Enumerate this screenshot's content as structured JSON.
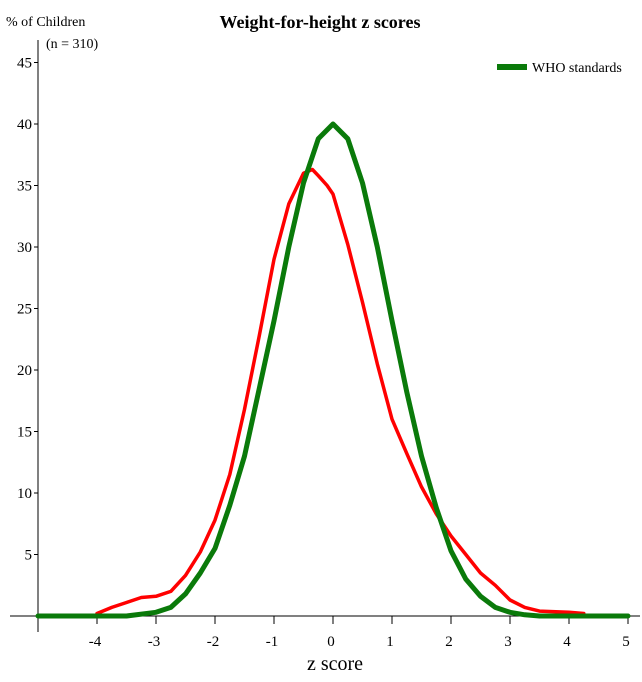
{
  "chart_data": {
    "type": "line",
    "title": "Weight-for-height z scores",
    "ylabel": "% of Children",
    "sample_note": "(n = 310)",
    "xlabel": "z score",
    "xlim": [
      -5,
      5
    ],
    "ylim": [
      0,
      45
    ],
    "x_ticks": [
      -4,
      -3,
      -2,
      -1,
      0,
      1,
      2,
      3,
      4,
      5
    ],
    "y_ticks": [
      5,
      10,
      15,
      20,
      25,
      30,
      35,
      40,
      45
    ],
    "grid": false,
    "legend_position": "top-right",
    "series": [
      {
        "name": "WHO standards",
        "color": "#0a7a0a",
        "points": [
          [
            -5,
            0
          ],
          [
            -4,
            0
          ],
          [
            -3.5,
            0
          ],
          [
            -3,
            0.3
          ],
          [
            -2.75,
            0.7
          ],
          [
            -2.5,
            1.8
          ],
          [
            -2.25,
            3.5
          ],
          [
            -2,
            5.5
          ],
          [
            -1.75,
            9
          ],
          [
            -1.5,
            13
          ],
          [
            -1.25,
            18.5
          ],
          [
            -1,
            24
          ],
          [
            -0.75,
            30
          ],
          [
            -0.5,
            35.2
          ],
          [
            -0.25,
            38.8
          ],
          [
            0,
            40
          ],
          [
            0.25,
            38.8
          ],
          [
            0.5,
            35.2
          ],
          [
            0.75,
            30
          ],
          [
            1,
            24
          ],
          [
            1.25,
            18.2
          ],
          [
            1.5,
            13
          ],
          [
            1.75,
            8.8
          ],
          [
            2,
            5.3
          ],
          [
            2.25,
            3
          ],
          [
            2.5,
            1.6
          ],
          [
            2.75,
            0.7
          ],
          [
            3,
            0.3
          ],
          [
            3.25,
            0.1
          ],
          [
            3.5,
            0
          ],
          [
            4,
            0
          ],
          [
            5,
            0
          ]
        ]
      },
      {
        "name": "",
        "color": "#ff0000",
        "points": [
          [
            -4,
            0.2
          ],
          [
            -3.75,
            0.7
          ],
          [
            -3.5,
            1.1
          ],
          [
            -3.25,
            1.5
          ],
          [
            -3,
            1.6
          ],
          [
            -2.75,
            2
          ],
          [
            -2.5,
            3.3
          ],
          [
            -2.25,
            5.2
          ],
          [
            -2,
            7.8
          ],
          [
            -1.75,
            11.5
          ],
          [
            -1.5,
            16.8
          ],
          [
            -1.25,
            22.8
          ],
          [
            -1,
            29
          ],
          [
            -0.75,
            33.5
          ],
          [
            -0.5,
            36
          ],
          [
            -0.35,
            36.3
          ],
          [
            -0.25,
            35.8
          ],
          [
            -0.1,
            35
          ],
          [
            0,
            34.3
          ],
          [
            0.25,
            30.2
          ],
          [
            0.5,
            25.5
          ],
          [
            0.75,
            20.5
          ],
          [
            1,
            16
          ],
          [
            1.25,
            13.2
          ],
          [
            1.5,
            10.5
          ],
          [
            1.75,
            8.3
          ],
          [
            2,
            6.5
          ],
          [
            2.25,
            5
          ],
          [
            2.5,
            3.5
          ],
          [
            2.75,
            2.5
          ],
          [
            3,
            1.3
          ],
          [
            3.25,
            0.7
          ],
          [
            3.5,
            0.4
          ],
          [
            4,
            0.3
          ],
          [
            4.25,
            0.2
          ]
        ]
      }
    ]
  }
}
